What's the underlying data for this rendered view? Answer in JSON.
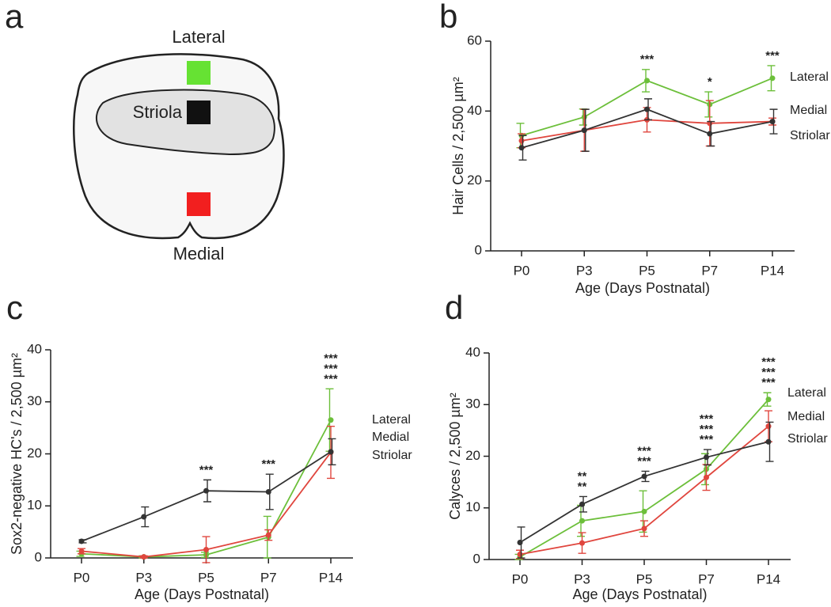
{
  "diagram": {
    "panel": "a",
    "labels": {
      "top": "Lateral",
      "center": "Striola",
      "bottom": "Medial"
    }
  },
  "chart_data": [
    {
      "type": "line",
      "panel": "b",
      "x_label": "Age (Days Postnatal)",
      "y_label": "Hair Cells / 2,500 µm²",
      "categories": [
        "P0",
        "P3",
        "P5",
        "P7",
        "P14"
      ],
      "ylim": [
        0,
        60
      ],
      "yticks": [
        0,
        20,
        40,
        60
      ],
      "series": [
        {
          "name": "Lateral",
          "color": "#6cbf3a",
          "values": [
            33,
            38.3,
            48.7,
            41.9,
            49.4
          ],
          "errors": [
            3.5,
            2.3,
            3.2,
            3.6,
            3.6
          ],
          "significance": [
            null,
            null,
            "***",
            "*",
            "***"
          ]
        },
        {
          "name": "Medial",
          "color": "#e0463e",
          "values": [
            31.5,
            34.5,
            37.5,
            36.5,
            37
          ],
          "errors": [
            2,
            6,
            3.5,
            6.5,
            1
          ],
          "significance": [
            null,
            null,
            null,
            null,
            null
          ]
        },
        {
          "name": "Striolar",
          "color": "#333333",
          "values": [
            29.5,
            34.5,
            40.5,
            33.5,
            37
          ],
          "errors": [
            3.5,
            6,
            3,
            3.5,
            3.5
          ],
          "significance": [
            null,
            null,
            null,
            null,
            null
          ]
        }
      ]
    },
    {
      "type": "line",
      "panel": "c",
      "x_label": "Age (Days Postnatal)",
      "y_label": "Sox2-negative HC's / 2,500 µm²",
      "categories": [
        "P0",
        "P3",
        "P5",
        "P7",
        "P14"
      ],
      "ylim": [
        0,
        40
      ],
      "yticks": [
        0,
        10,
        20,
        30,
        40
      ],
      "series": [
        {
          "name": "Lateral",
          "color": "#6cbf3a",
          "values": [
            0.8,
            0.2,
            0.6,
            4.0,
            26.5
          ],
          "errors": [
            0.5,
            0.2,
            0.5,
            4,
            6
          ],
          "significance": [
            null,
            null,
            null,
            null,
            "***"
          ]
        },
        {
          "name": "Medial",
          "color": "#e0463e",
          "values": [
            1.3,
            0.2,
            1.6,
            4.4,
            20.3
          ],
          "errors": [
            0.5,
            0.2,
            2.5,
            1,
            5
          ],
          "significance": [
            null,
            null,
            null,
            null,
            "***"
          ]
        },
        {
          "name": "Striolar",
          "color": "#333333",
          "values": [
            3.2,
            7.9,
            12.9,
            12.7,
            20.4
          ],
          "errors": [
            0.3,
            1.9,
            2.1,
            3.4,
            2.5
          ],
          "significance": [
            null,
            null,
            "***",
            "***",
            "***"
          ]
        }
      ]
    },
    {
      "type": "line",
      "panel": "d",
      "x_label": "Age (Days Postnatal)",
      "y_label": "Calyces / 2,500 µm²",
      "categories": [
        "P0",
        "P3",
        "P5",
        "P7",
        "P14"
      ],
      "ylim": [
        0,
        40
      ],
      "yticks": [
        0,
        10,
        20,
        30,
        40
      ],
      "series": [
        {
          "name": "Lateral",
          "color": "#6cbf3a",
          "values": [
            0.5,
            7.5,
            9.3,
            17.5,
            31.0
          ],
          "errors": [
            0.5,
            3,
            4,
            3,
            1.3
          ],
          "significance": [
            null,
            "**",
            "***",
            "***",
            "***"
          ]
        },
        {
          "name": "Medial",
          "color": "#e0463e",
          "values": [
            1.0,
            3.2,
            6.0,
            15.9,
            25.8
          ],
          "errors": [
            0.8,
            2,
            1.5,
            2.5,
            3
          ],
          "significance": [
            null,
            null,
            null,
            "***",
            "***"
          ]
        },
        {
          "name": "Striolar",
          "color": "#333333",
          "values": [
            3.3,
            10.7,
            16.1,
            19.8,
            22.8
          ],
          "errors": [
            3,
            1.5,
            1,
            1.5,
            3.8
          ],
          "significance": [
            null,
            "**",
            "***",
            "***",
            "***"
          ]
        }
      ]
    }
  ]
}
